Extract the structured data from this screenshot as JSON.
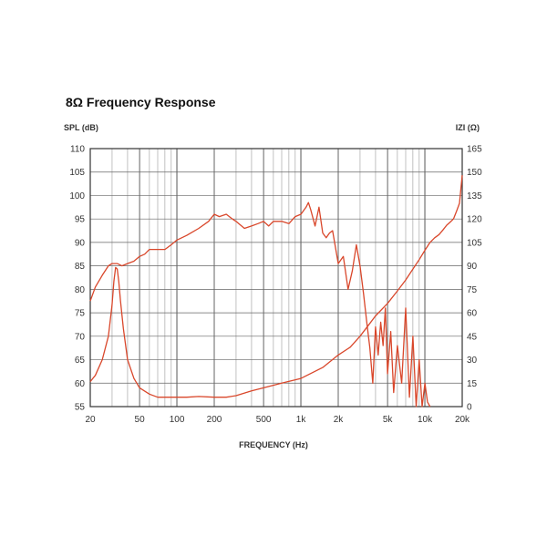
{
  "chart_data": {
    "type": "line",
    "title": "8Ω Frequency Response",
    "xlabel": "FREQUENCY (Hz)",
    "ylabel_left": "SPL (dB)",
    "ylabel_right": "IZI (Ω)",
    "x_scale": "log",
    "xlim": [
      20,
      20000
    ],
    "ylim_left": [
      55,
      110
    ],
    "ylim_right": [
      0,
      165
    ],
    "x_ticks": [
      {
        "value": 20,
        "label": "20"
      },
      {
        "value": 50,
        "label": "50"
      },
      {
        "value": 100,
        "label": "100"
      },
      {
        "value": 200,
        "label": "200"
      },
      {
        "value": 500,
        "label": "500"
      },
      {
        "value": 1000,
        "label": "1k"
      },
      {
        "value": 2000,
        "label": "2k"
      },
      {
        "value": 5000,
        "label": "5k"
      },
      {
        "value": 10000,
        "label": "10k"
      },
      {
        "value": 20000,
        "label": "20k"
      }
    ],
    "y_ticks_left": [
      "110",
      "105",
      "100",
      "95",
      "90",
      "85",
      "80",
      "75",
      "70",
      "65",
      "60",
      "55"
    ],
    "y_ticks_right": [
      "165",
      "150",
      "135",
      "120",
      "105",
      "90",
      "75",
      "60",
      "45",
      "30",
      "15",
      "0"
    ],
    "grid": true,
    "line_color": "#d9472b",
    "series": [
      {
        "axis": "left",
        "x": [
          20,
          22,
          25,
          28,
          30,
          33,
          36,
          40,
          45,
          50,
          55,
          60,
          70,
          80,
          90,
          100,
          120,
          150,
          180,
          200,
          220,
          250,
          280,
          300,
          350,
          400,
          450,
          500,
          550,
          600,
          700,
          800,
          900,
          1000,
          1100,
          1150,
          1200,
          1300,
          1400,
          1500,
          1600,
          1700,
          1800,
          2000,
          2200,
          2400,
          2600,
          2800,
          3000,
          3200,
          3400,
          3600,
          3800,
          4000,
          4200,
          4400,
          4600,
          4800,
          5000,
          5300,
          5600,
          6000,
          6500,
          7000,
          7500,
          8000,
          8500,
          9000,
          9500,
          10000,
          10500,
          11000
        ],
        "y": [
          77.5,
          80.5,
          83,
          85,
          85.5,
          85.5,
          85,
          85.5,
          86,
          87,
          87.5,
          88.5,
          88.5,
          88.5,
          89.5,
          90.5,
          91.5,
          93,
          94.5,
          96,
          95.5,
          96,
          95,
          94.5,
          93,
          93.5,
          94,
          94.5,
          93.5,
          94.5,
          94.5,
          94,
          95.5,
          96,
          97.5,
          98.5,
          97,
          93.5,
          97.5,
          92,
          91,
          92,
          92.5,
          85.5,
          87,
          80,
          84,
          89.5,
          85,
          79,
          73,
          67.5,
          60,
          72,
          66,
          73,
          68,
          76,
          62,
          71,
          58,
          68,
          60,
          76,
          57,
          70,
          54,
          65,
          53,
          60,
          56,
          51
        ]
      },
      {
        "axis": "right",
        "x": [
          20,
          22,
          25,
          28,
          30,
          31,
          32,
          33,
          34,
          35,
          37,
          40,
          45,
          50,
          60,
          70,
          80,
          100,
          120,
          150,
          200,
          250,
          300,
          400,
          500,
          700,
          1000,
          1500,
          2000,
          2500,
          3000,
          3500,
          4000,
          5000,
          6000,
          7000,
          8000,
          9000,
          10000,
          11000,
          12000,
          13000,
          14000,
          15000,
          16000,
          17000,
          18000,
          19000,
          20000
        ],
        "y": [
          16,
          20,
          30,
          45,
          65,
          80,
          89,
          88,
          80,
          68,
          50,
          30,
          18,
          12,
          8,
          6,
          6,
          6,
          6,
          6.5,
          6,
          6,
          7,
          10,
          12,
          15,
          18,
          25,
          33,
          38,
          45,
          52,
          58,
          66,
          74,
          81,
          88,
          94,
          100,
          105,
          108,
          110,
          113,
          116,
          118,
          120,
          125,
          130,
          148
        ]
      }
    ]
  }
}
